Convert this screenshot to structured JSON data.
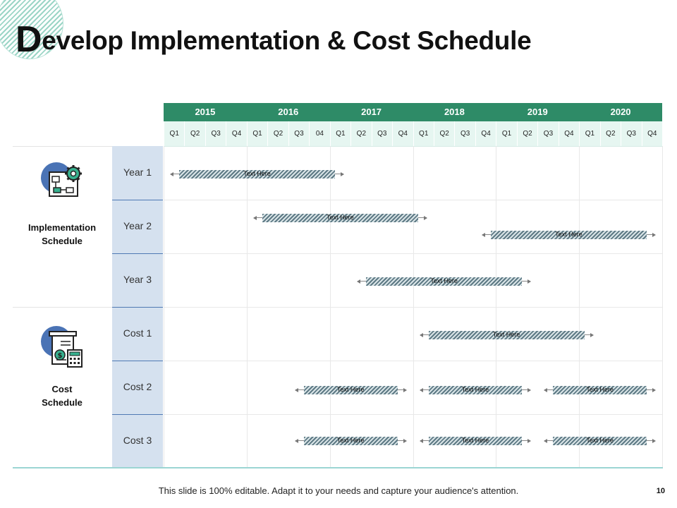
{
  "title": {
    "first_letter": "D",
    "rest": "evelop Implementation & Cost Schedule"
  },
  "years": [
    "2015",
    "2016",
    "2017",
    "2018",
    "2019",
    "2020"
  ],
  "quarters": [
    "Q1",
    "Q2",
    "Q3",
    "Q4",
    "Q1",
    "Q2",
    "Q3",
    "04",
    "Q1",
    "Q2",
    "Q3",
    "Q4",
    "Q1",
    "Q2",
    "Q3",
    "Q4",
    "Q1",
    "Q2",
    "Q3",
    "Q4",
    "Q1",
    "Q2",
    "Q3",
    "Q4"
  ],
  "groups": [
    {
      "label_line1": "Implementation",
      "label_line2": "Schedule",
      "icon": "blueprint-gear-icon"
    },
    {
      "label_line1": "Cost",
      "label_line2": "Schedule",
      "icon": "receipt-calculator-icon"
    }
  ],
  "rows": [
    "Year 1",
    "Year 2",
    "Year 3",
    "Cost 1",
    "Cost 2",
    "Cost 3"
  ],
  "bars": [
    {
      "row": 0,
      "start_q": 0,
      "end_q": 8,
      "text": "Text Here"
    },
    {
      "row": 1,
      "start_q": 4,
      "end_q": 12,
      "text": "Text Here"
    },
    {
      "row": 1,
      "start_q": 15,
      "end_q": 23,
      "text": "Text Here",
      "offset": 1
    },
    {
      "row": 2,
      "start_q": 9,
      "end_q": 17,
      "text": "Text Here"
    },
    {
      "row": 3,
      "start_q": 12,
      "end_q": 20,
      "text": "Text Here"
    },
    {
      "row": 4,
      "start_q": 6,
      "end_q": 11,
      "text": "Text Here"
    },
    {
      "row": 4,
      "start_q": 12,
      "end_q": 17,
      "text": "Text Here"
    },
    {
      "row": 4,
      "start_q": 18,
      "end_q": 23,
      "text": "Text Here"
    },
    {
      "row": 5,
      "start_q": 6,
      "end_q": 11,
      "text": "Text Here"
    },
    {
      "row": 5,
      "start_q": 12,
      "end_q": 17,
      "text": "Text Here"
    },
    {
      "row": 5,
      "start_q": 18,
      "end_q": 23,
      "text": "Text Here"
    }
  ],
  "footer": "This slide is 100% editable. Adapt it to your needs and capture your audience's attention.",
  "page_number": "10",
  "colors": {
    "header_green": "#2e8b67",
    "quarter_bg": "#e6f6f1",
    "label_col": "#d5e1ef",
    "icon_blue": "#4a73b5"
  }
}
